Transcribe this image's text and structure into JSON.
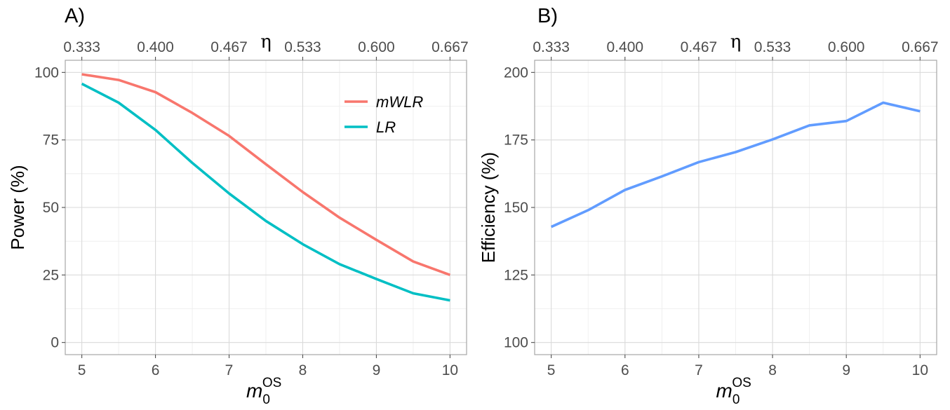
{
  "chart_data": [
    {
      "panel_label": "A)",
      "type": "line",
      "x": [
        5,
        5.5,
        6,
        6.5,
        7,
        7.5,
        8,
        8.5,
        9,
        9.5,
        10
      ],
      "series": [
        {
          "name": "mWLR",
          "color": "#F8766D",
          "values": [
            99.3,
            97.2,
            92.7,
            85.0,
            76.5,
            66.0,
            55.7,
            46.2,
            38.0,
            30.0,
            25.0
          ]
        },
        {
          "name": "LR",
          "color": "#00BFC4",
          "values": [
            95.8,
            88.8,
            78.7,
            66.5,
            55.2,
            45.0,
            36.4,
            29.0,
            23.5,
            18.2,
            15.6
          ]
        }
      ],
      "xlabel": "m",
      "xlabel_sub": "0",
      "xlabel_sup": "OS",
      "ylabel": "Power (%)",
      "top_axis_label": "η",
      "xlim": [
        5,
        10
      ],
      "ylim": [
        0,
        100
      ],
      "x_ticks": [
        "5",
        "6",
        "7",
        "8",
        "9",
        "10"
      ],
      "y_ticks": [
        "0",
        "25",
        "50",
        "75",
        "100"
      ],
      "top_ticks": [
        "0.333",
        "0.400",
        "0.467",
        "0.533",
        "0.600",
        "0.667"
      ],
      "grid": true,
      "legend_position": "top-right"
    },
    {
      "panel_label": "B)",
      "type": "line",
      "x": [
        5,
        5.5,
        6,
        6.5,
        7,
        7.5,
        8,
        8.5,
        9,
        9.5,
        10
      ],
      "series": [
        {
          "color": "#619CFF",
          "values": [
            142.8,
            149.0,
            156.5,
            161.5,
            166.8,
            170.5,
            175.2,
            180.4,
            182.0,
            188.8,
            185.6
          ]
        }
      ],
      "xlabel": "m",
      "xlabel_sub": "0",
      "xlabel_sup": "OS",
      "ylabel": "Efficiency (%)",
      "top_axis_label": "η",
      "xlim": [
        5,
        10
      ],
      "ylim": [
        100,
        200
      ],
      "x_ticks": [
        "5",
        "6",
        "7",
        "8",
        "9",
        "10"
      ],
      "y_ticks": [
        "100",
        "125",
        "150",
        "175",
        "200"
      ],
      "top_ticks": [
        "0.333",
        "0.400",
        "0.467",
        "0.533",
        "0.600",
        "0.667"
      ],
      "grid": true,
      "legend_position": "none"
    }
  ]
}
